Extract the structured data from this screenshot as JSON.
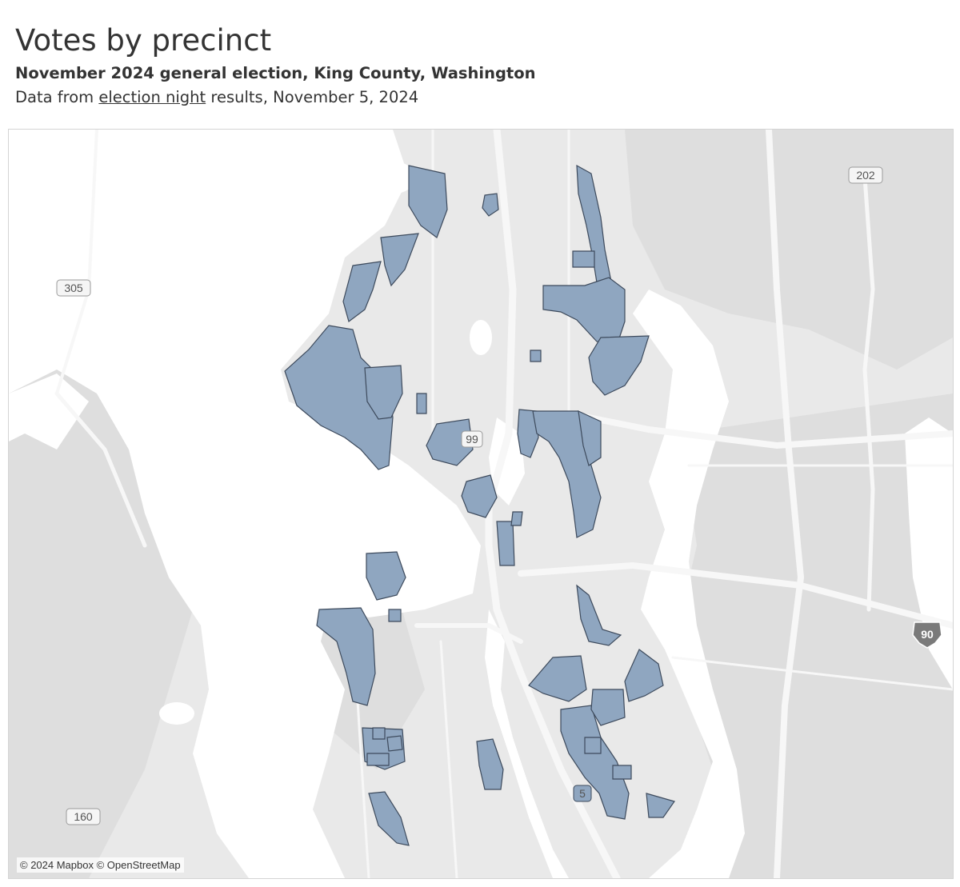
{
  "header": {
    "title": "Votes by precinct",
    "subtitle": "November 2024 general election, King County, Washington",
    "source_prefix": "Data from ",
    "source_link": "election night",
    "source_suffix": " results, November 5, 2024"
  },
  "map": {
    "attribution": "© 2024 Mapbox © OpenStreetMap",
    "route_labels": {
      "r305": "305",
      "r202": "202",
      "r99": "99",
      "r90": "90",
      "r160": "160",
      "r5": "5"
    },
    "colors": {
      "land": "#e9e9e9",
      "water": "#ffffff",
      "terrain": "#dedede",
      "road": "#f7f7f7",
      "precinct_fill": "#8fa6c0",
      "precinct_stroke": "#3d4a5c"
    }
  }
}
